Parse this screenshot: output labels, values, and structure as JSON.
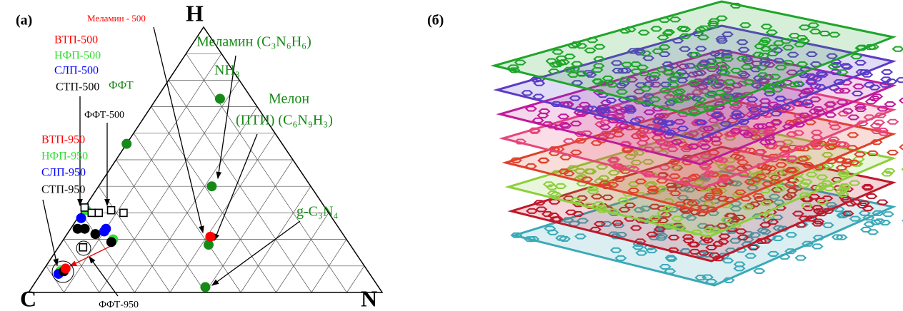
{
  "panel_a": {
    "label": "(а)",
    "vertices": {
      "top": "H",
      "left": "C",
      "right": "N"
    },
    "annotations": {
      "melamine_500": "Меламин - 500",
      "melamine": "Меламин (C₃N₆H₆)",
      "vtp_500": "ВТП-500",
      "nfp_500": "НФП-500",
      "slp_500": "СЛП-500",
      "stp_500": "СТП-500",
      "fft": "ФФТ",
      "fft_500": "ФФТ-500",
      "nh3": "NH₃",
      "melon": "Мелон",
      "pti": "(ПТИ) (C₆N₉H₃)",
      "vtp_950": "ВТП-950",
      "nfp_950": "НФП-950",
      "slp_950": "СЛП-950",
      "stp_950": "СТП-950",
      "gcn": "g-C₃N₄",
      "fft_950": "ФФТ-950"
    },
    "points": [
      {
        "h": 0.73,
        "n": 0.18,
        "color": "#168a16",
        "shape": "circle"
      },
      {
        "h": 0.56,
        "n": 0.0,
        "color": "#168a16",
        "shape": "circle"
      },
      {
        "h": 0.4,
        "n": 0.32,
        "color": "#168a16",
        "shape": "circle"
      },
      {
        "h": 0.18,
        "n": 0.42,
        "color": "#168a16",
        "shape": "circle"
      },
      {
        "h": 0.21,
        "n": 0.41,
        "color": "#ff0000",
        "shape": "circle"
      },
      {
        "h": 0.02,
        "n": 0.49,
        "color": "#168a16",
        "shape": "circle"
      },
      {
        "h": 0.31,
        "n": 0.01,
        "color": "#33dd33",
        "shape": "circle"
      },
      {
        "h": 0.28,
        "n": 0.01,
        "color": "#0000ff",
        "shape": "circle"
      },
      {
        "h": 0.24,
        "n": 0.02,
        "color": "#000000",
        "shape": "circle"
      },
      {
        "h": 0.24,
        "n": 0.04,
        "color": "#000000",
        "shape": "circle"
      },
      {
        "h": 0.22,
        "n": 0.08,
        "color": "#000000",
        "shape": "circle"
      },
      {
        "h": 0.24,
        "n": 0.1,
        "color": "#0000ff",
        "shape": "circle"
      },
      {
        "h": 0.23,
        "n": 0.1,
        "color": "#0000ff",
        "shape": "circle"
      },
      {
        "h": 0.2,
        "n": 0.14,
        "color": "#33dd33",
        "shape": "circle"
      },
      {
        "h": 0.19,
        "n": 0.14,
        "color": "#000000",
        "shape": "circle"
      },
      {
        "h": 0.08,
        "n": 0.05,
        "color": "#33dd33",
        "shape": "circle"
      },
      {
        "h": 0.07,
        "n": 0.05,
        "color": "#0000ff",
        "shape": "circle"
      },
      {
        "h": 0.08,
        "n": 0.06,
        "color": "#000000",
        "shape": "circle"
      },
      {
        "h": 0.09,
        "n": 0.06,
        "color": "#ff0000",
        "shape": "circle"
      },
      {
        "h": 0.32,
        "n": 0.0,
        "color": "#000000",
        "shape": "square"
      },
      {
        "h": 0.3,
        "n": 0.03,
        "color": "#000000",
        "shape": "square"
      },
      {
        "h": 0.3,
        "n": 0.05,
        "color": "#000000",
        "shape": "square"
      },
      {
        "h": 0.31,
        "n": 0.08,
        "color": "#000000",
        "shape": "square"
      },
      {
        "h": 0.3,
        "n": 0.12,
        "color": "#000000",
        "shape": "square"
      },
      {
        "h": 0.17,
        "n": 0.07,
        "color": "#000000",
        "shape": "square"
      }
    ]
  },
  "panel_b": {
    "label": "(б)"
  }
}
